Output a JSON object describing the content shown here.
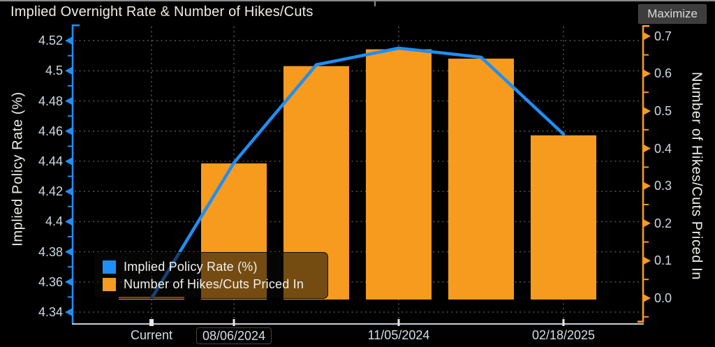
{
  "header": {
    "title": "Implied Overnight Rate & Number of Hikes/Cuts",
    "maximize_label": "Maximize"
  },
  "legend": {
    "items": [
      {
        "label": "Implied Policy Rate (%)",
        "color": "#1F8EF5"
      },
      {
        "label": "Number of Hikes/Cuts Priced In",
        "color": "#F79B1E"
      }
    ]
  },
  "chart_data": {
    "type": "bar+line",
    "categories": [
      "Current",
      "08/06/2024",
      "",
      "11/05/2024",
      "",
      "02/18/2025"
    ],
    "series": [
      {
        "name": "Implied Policy Rate (%)",
        "type": "line",
        "axis": "left",
        "color": "#1F8EF5",
        "values": [
          4.349,
          4.439,
          4.504,
          4.515,
          4.509,
          4.458
        ]
      },
      {
        "name": "Number of Hikes/Cuts Priced In",
        "type": "bar",
        "axis": "right",
        "color": "#F79B1E",
        "values": [
          0.0,
          0.36,
          0.62,
          0.665,
          0.64,
          0.435
        ]
      }
    ],
    "left_axis": {
      "title": "Implied Policy Rate (%)",
      "min": 4.34,
      "max": 4.52,
      "tick_step": 0.02,
      "tick_labels": [
        "4.52",
        "4.5",
        "4.48",
        "4.46",
        "4.44",
        "4.42",
        "4.4",
        "4.38",
        "4.36",
        "4.34"
      ]
    },
    "right_axis": {
      "title": "Number of Hikes/Cuts Priced In",
      "min": 0.0,
      "max": 0.7,
      "tick_step": 0.1,
      "minor_tick_step": 0.05,
      "tick_labels": [
        "0.7",
        "0.6",
        "0.5",
        "0.4",
        "0.3",
        "0.2",
        "0.1",
        "0.0"
      ]
    },
    "x_axis": {
      "tick_labels": [
        "Current",
        "08/06/2024",
        "11/05/2024",
        "02/18/2025"
      ],
      "tick_category_indices": [
        0,
        1,
        3,
        5
      ],
      "highlighted_tick": "08/06/2024"
    },
    "grid": {
      "horizontal": "dashed",
      "vertical": "dashed-at-labeled-ticks",
      "color": "#4F4F4F"
    },
    "legend_position": "inside-bottom-left",
    "background": "#000000"
  }
}
